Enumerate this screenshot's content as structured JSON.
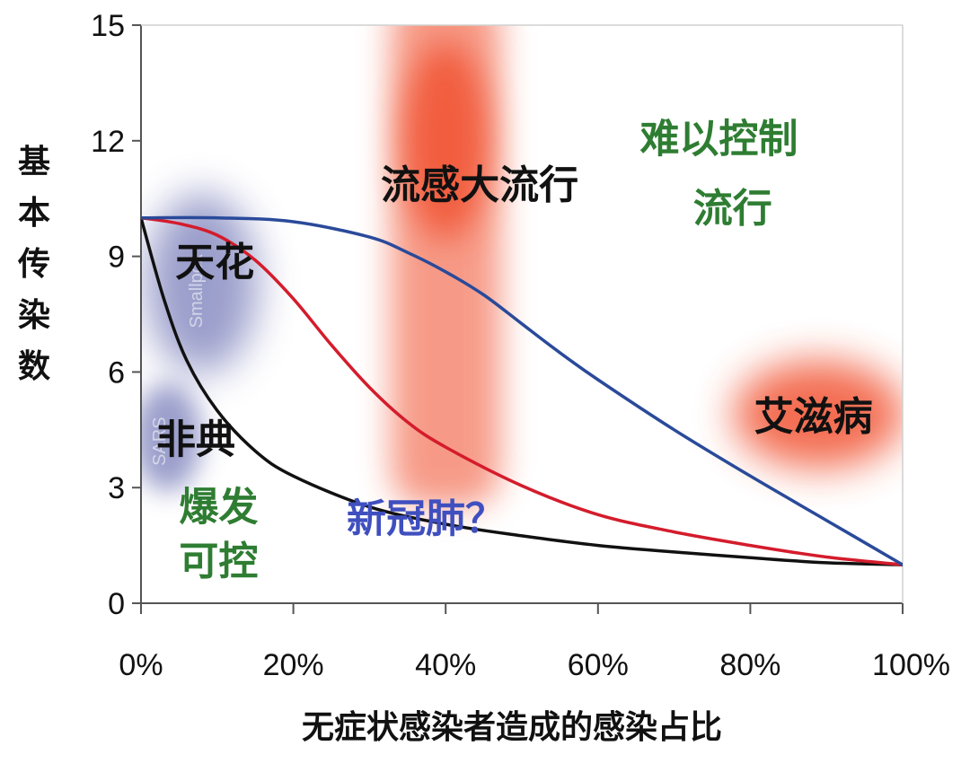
{
  "chart_data": {
    "type": "line",
    "title": "",
    "xlabel": "无症状感染者造成的感染占比",
    "ylabel": "基本传染数",
    "xlim": [
      0,
      100
    ],
    "ylim": [
      0,
      15
    ],
    "x_ticks": [
      "0%",
      "20%",
      "40%",
      "60%",
      "80%",
      "100%"
    ],
    "x_tick_values": [
      0,
      20,
      40,
      60,
      80,
      100
    ],
    "y_ticks": [
      "0",
      "3",
      "6",
      "9",
      "12",
      "15"
    ],
    "y_tick_values": [
      0,
      3,
      6,
      9,
      12,
      15
    ],
    "series": [
      {
        "name": "black-curve",
        "color": "#111111",
        "x": [
          0,
          3,
          6,
          10,
          15,
          20,
          30,
          40,
          50,
          60,
          70,
          80,
          90,
          100
        ],
        "y": [
          10,
          7.9,
          6.3,
          5.0,
          3.95,
          3.3,
          2.5,
          2.05,
          1.75,
          1.5,
          1.33,
          1.18,
          1.05,
          1.0
        ]
      },
      {
        "name": "red-curve",
        "color": "#d41c2c",
        "x": [
          0,
          5,
          10,
          15,
          20,
          25,
          30,
          35,
          40,
          50,
          60,
          70,
          80,
          90,
          100
        ],
        "y": [
          10,
          9.85,
          9.55,
          8.9,
          7.9,
          6.7,
          5.6,
          4.7,
          4.05,
          3.05,
          2.3,
          1.85,
          1.5,
          1.2,
          1.0
        ]
      },
      {
        "name": "blue-curve",
        "color": "#2a4a9a",
        "x": [
          0,
          10,
          20,
          30,
          35,
          40,
          45,
          50,
          55,
          60,
          70,
          80,
          90,
          100
        ],
        "y": [
          10,
          10,
          9.9,
          9.5,
          9.1,
          8.6,
          8.0,
          7.25,
          6.5,
          5.8,
          4.5,
          3.3,
          2.15,
          1.0
        ]
      }
    ],
    "regions": [
      {
        "name": "flu",
        "color": "#f04a28",
        "x_range": [
          30,
          50
        ],
        "y_range": [
          2.5,
          15
        ]
      },
      {
        "name": "aids",
        "color": "#f04a28",
        "center": [
          89,
          4.9
        ]
      },
      {
        "name": "smallpox",
        "color": "#4a50a0",
        "center": [
          8,
          8.3
        ]
      },
      {
        "name": "sars",
        "color": "#4a50a0",
        "center": [
          3.5,
          4.3
        ]
      }
    ],
    "annotations": [
      {
        "text": "流感大流行",
        "color": "#111111",
        "x": 31.5,
        "y": 10.5
      },
      {
        "text": "难以控制",
        "color": "#2e7d32",
        "x": 65.5,
        "y": 11.7
      },
      {
        "text": "流行",
        "color": "#2e7d32",
        "x": 72.5,
        "y": 9.9
      },
      {
        "text": "天花",
        "color": "#111111",
        "x": 4.5,
        "y": 8.5
      },
      {
        "text": "艾滋病",
        "color": "#111111",
        "x": 80.5,
        "y": 4.5
      },
      {
        "text": "非典",
        "color": "#111111",
        "x": 2,
        "y": 3.9
      },
      {
        "text": "爆发",
        "color": "#2e7d32",
        "x": 5,
        "y": 2.15
      },
      {
        "text": "可控",
        "color": "#2e7d32",
        "x": 5,
        "y": 0.75
      },
      {
        "text": "新冠肺？",
        "color": "#3f4fbf",
        "x": 27,
        "y": 1.85
      }
    ],
    "faint_labels": [
      {
        "text": "Smallpox",
        "x": 8,
        "y": 8.1
      },
      {
        "text": "SARS",
        "x": 3.2,
        "y": 4.2
      }
    ]
  }
}
